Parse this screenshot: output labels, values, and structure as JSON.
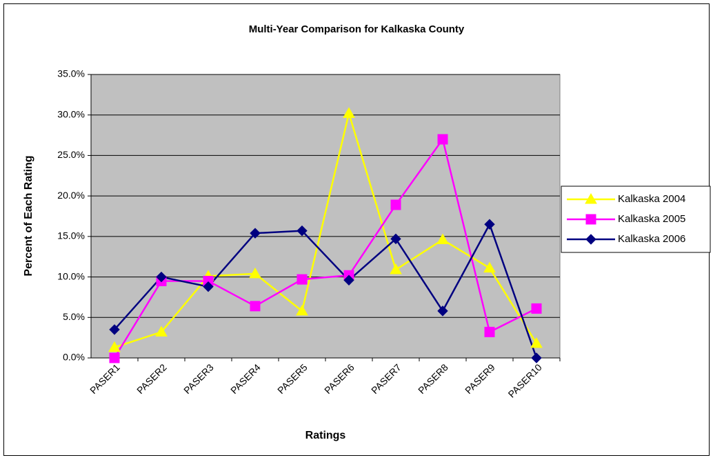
{
  "chart_data": {
    "type": "line",
    "title": "Multi-Year Comparison for Kalkaska County",
    "x_label": "Ratings",
    "y_label": "Percent of Each Rating",
    "categories": [
      "PASER1",
      "PASER2",
      "PASER3",
      "PASER4",
      "PASER5",
      "PASER6",
      "PASER7",
      "PASER8",
      "PASER9",
      "PASER10"
    ],
    "series": [
      {
        "name": "Kalkaska 2004",
        "color": "#ffff00",
        "marker": "triangle",
        "values": [
          1.3,
          3.2,
          10.1,
          10.4,
          5.8,
          30.2,
          10.9,
          14.6,
          11.1,
          1.8
        ]
      },
      {
        "name": "Kalkaska 2005",
        "color": "#ff00ff",
        "marker": "square",
        "values": [
          0,
          9.5,
          9.5,
          6.4,
          9.7,
          10.2,
          18.9,
          27.0,
          3.2,
          6.1
        ]
      },
      {
        "name": "Kalkaska 2006",
        "color": "#000080",
        "marker": "diamond",
        "values": [
          3.5,
          10.0,
          8.8,
          15.4,
          15.7,
          9.6,
          14.7,
          5.8,
          16.5,
          0.0
        ]
      }
    ],
    "ylim": [
      0,
      35
    ],
    "yticks": [
      {
        "value": 0,
        "label": "0.0%"
      },
      {
        "value": 5,
        "label": "5.0%"
      },
      {
        "value": 10,
        "label": "10.0%"
      },
      {
        "value": 15,
        "label": "15.0%"
      },
      {
        "value": 20,
        "label": "20.0%"
      },
      {
        "value": 25,
        "label": "25.0%"
      },
      {
        "value": 30,
        "label": "30.0%"
      },
      {
        "value": 35,
        "label": "35.0%"
      }
    ],
    "grid": true,
    "legend": "right",
    "plot_background": "#c0c0c0"
  }
}
